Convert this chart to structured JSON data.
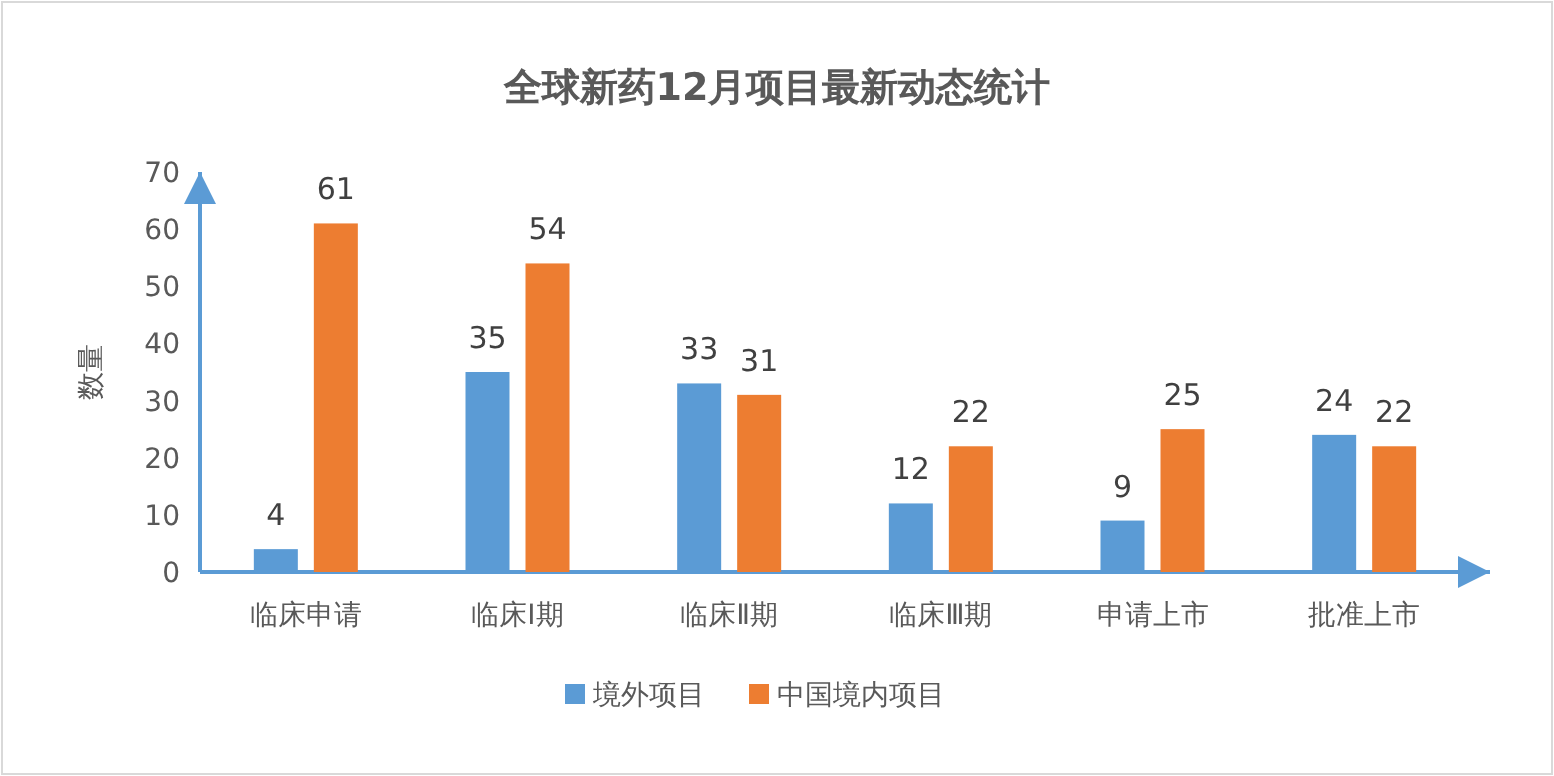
{
  "chart_data": {
    "type": "bar",
    "title": "全球新药12月项目最新动态统计",
    "ylabel": "数量",
    "categories": [
      "临床申请",
      "临床Ⅰ期",
      "临床Ⅱ期",
      "临床Ⅲ期",
      "申请上市",
      "批准上市"
    ],
    "series": [
      {
        "name": "境外项目",
        "color": "#5b9bd5",
        "values": [
          4,
          35,
          33,
          12,
          9,
          24
        ]
      },
      {
        "name": "中国境内项目",
        "color": "#ed7d31",
        "values": [
          61,
          54,
          31,
          22,
          25,
          22
        ]
      }
    ],
    "ylim": [
      0,
      70
    ],
    "yticks": [
      0,
      10,
      20,
      30,
      40,
      50,
      60,
      70
    ],
    "data_labels": true,
    "grid": false,
    "legend": "bottom"
  }
}
